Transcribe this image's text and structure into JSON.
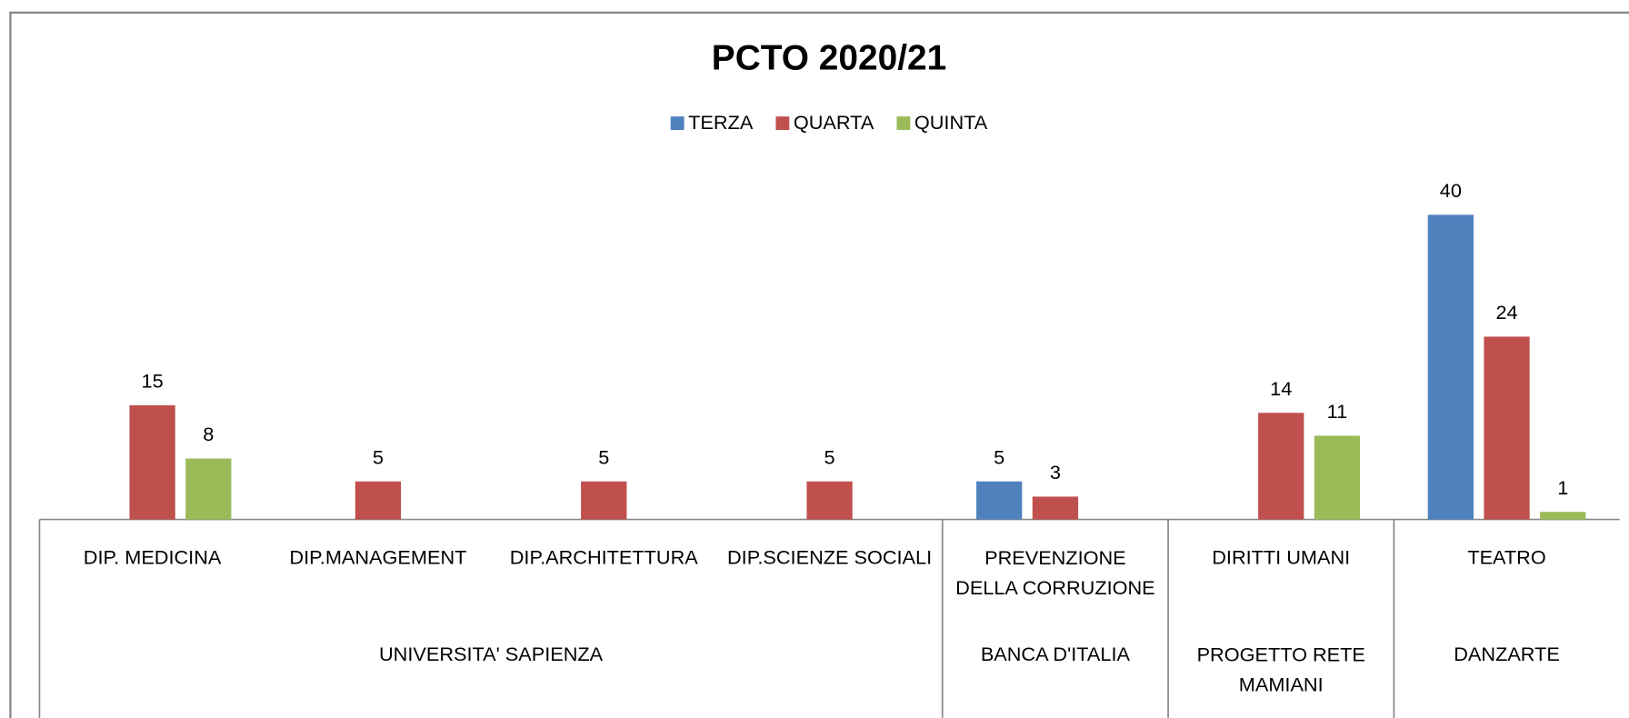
{
  "chart_data": {
    "type": "bar",
    "title": "PCTO 2020/21",
    "categories": [
      "DIP. MEDICINA",
      "DIP.MANAGEMENT",
      "DIP.ARCHITETTURA",
      "DIP.SCIENZE SOCIALI",
      "PREVENZIONE DELLA CORRUZIONE",
      "DIRITTI UMANI",
      "TEATRO"
    ],
    "groups": [
      "UNIVERSITA' SAPIENZA",
      null,
      null,
      null,
      "BANCA D'ITALIA",
      "PROGETTO RETE MAMIANI",
      "DANZARTE"
    ],
    "series": [
      {
        "name": "TERZA",
        "color": "#4f81bd",
        "values": [
          null,
          null,
          null,
          null,
          5,
          null,
          40
        ]
      },
      {
        "name": "QUARTA",
        "color": "#c0504d",
        "values": [
          15,
          5,
          5,
          5,
          3,
          14,
          24
        ]
      },
      {
        "name": "QUINTA",
        "color": "#9bbb59",
        "values": [
          8,
          null,
          null,
          null,
          null,
          11,
          1
        ]
      }
    ],
    "ylim": [
      0,
      45
    ],
    "legend": "top",
    "data_labels": true
  }
}
